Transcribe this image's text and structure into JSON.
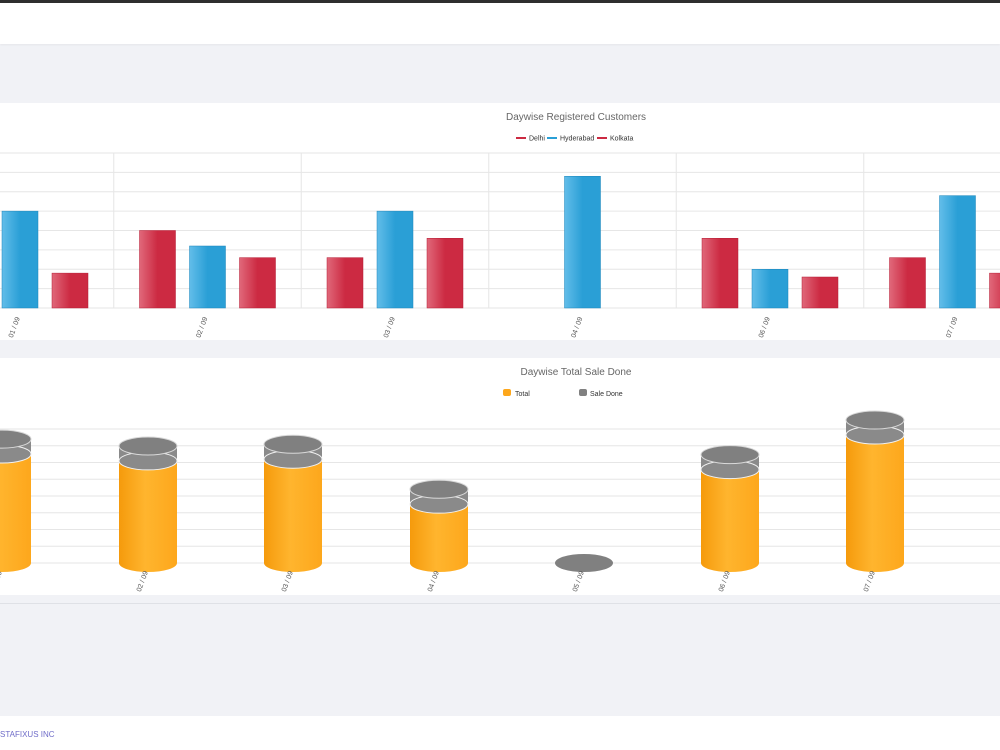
{
  "footer": {
    "company": "STAFIXUS INC"
  },
  "colors": {
    "delhi": "#cc2a42",
    "hyderabad": "#2a9fd6",
    "kolkata": "#cc2a42",
    "total": "#fda71c",
    "sale_done": "#808080"
  },
  "chart_data": [
    {
      "type": "bar",
      "title": "Daywise Registered Customers",
      "legend_position": "top-center",
      "categories": [
        "01 / 09",
        "02 / 09",
        "03 / 09",
        "04 / 09",
        "06 / 09",
        "07 / 09"
      ],
      "series": [
        {
          "name": "Delhi",
          "values": [
            null,
            4,
            2.6,
            null,
            3.6,
            2.6
          ]
        },
        {
          "name": "Hyderabad",
          "values": [
            5,
            3.2,
            5,
            6.8,
            2,
            5.8
          ]
        },
        {
          "name": "Kolkata",
          "values": [
            1.8,
            2.6,
            3.6,
            null,
            1.6,
            1.8
          ]
        }
      ],
      "ylim": [
        0,
        8
      ],
      "grid": true
    },
    {
      "type": "bar",
      "title": "Daywise Total Sale Done",
      "legend_position": "top-center",
      "categories": [
        "01 / 09",
        "02 / 09",
        "03 / 09",
        "04 / 09",
        "05 / 09",
        "06 / 09",
        "07 / 09"
      ],
      "series": [
        {
          "name": "Total",
          "values": [
            6.3,
            5.9,
            6.0,
            3.4,
            0,
            5.4,
            7.4
          ]
        },
        {
          "name": "Sale Done",
          "values": [
            0.4,
            0.4,
            0.4,
            0.4,
            0,
            0.4,
            0.4
          ]
        }
      ],
      "ylim": [
        0,
        8
      ],
      "grid": true
    }
  ]
}
